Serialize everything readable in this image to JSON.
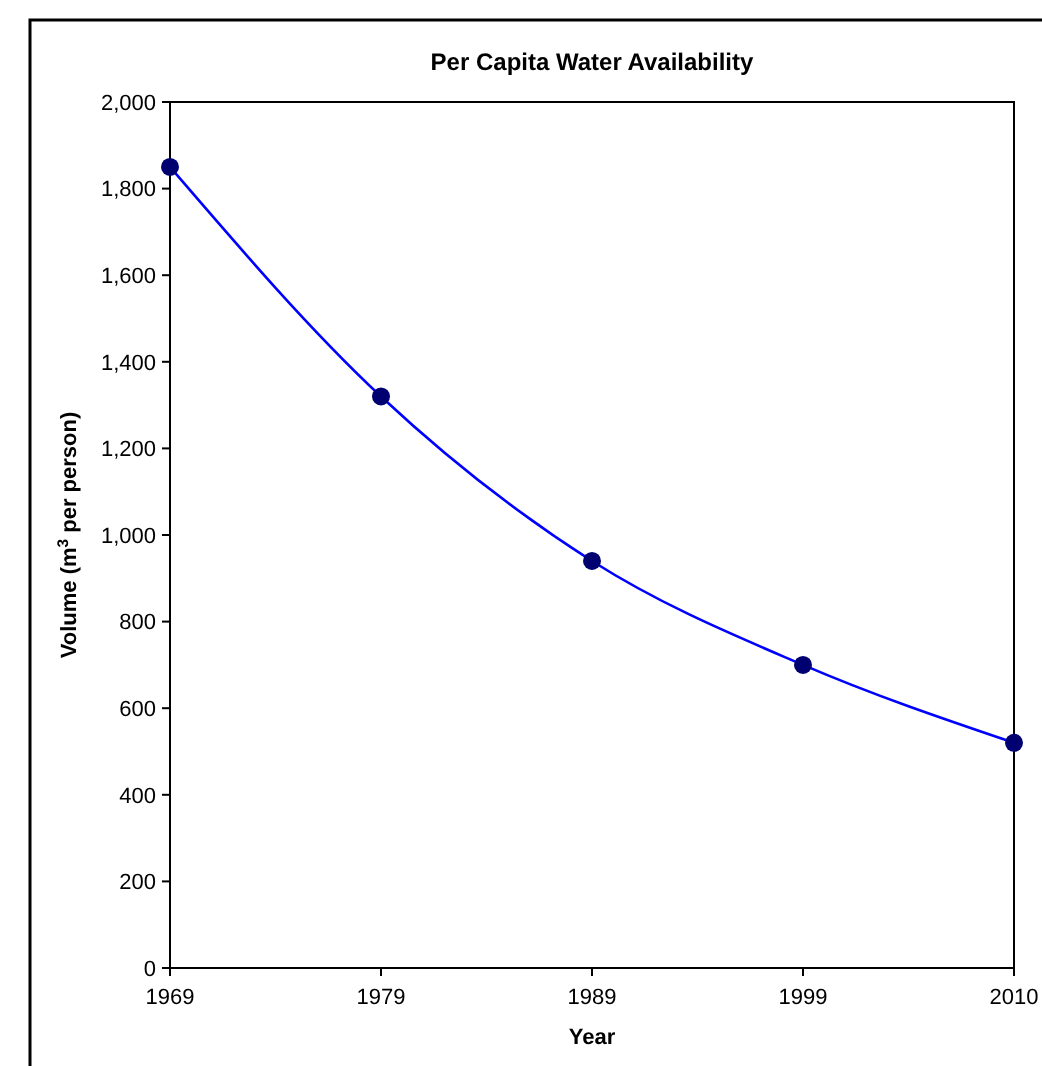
{
  "chart_data": {
    "type": "line",
    "title": "Per Capita Water Availability",
    "xlabel": "Year",
    "ylabel": "Volume (m$^{3}$ per person)",
    "categories": [
      "1969",
      "1979",
      "1989",
      "1999",
      "2010"
    ],
    "series": [
      {
        "color": "#0000ff",
        "values": [
          1850,
          1320,
          940,
          700,
          520
        ]
      }
    ],
    "ylim": [
      0,
      2000
    ],
    "yticks": [
      0,
      200,
      400,
      600,
      800,
      {
        "value": 1000,
        "label": "1,000"
      },
      {
        "value": 1200,
        "label": "1,200"
      },
      {
        "value": 1400,
        "label": "1,400"
      },
      {
        "value": 1600,
        "label": "1,600"
      },
      {
        "value": 1800,
        "label": "1,800"
      },
      {
        "value": 2000,
        "label": "2,000"
      }
    ],
    "marker": "circle",
    "line_style": "solid",
    "grid": false
  }
}
